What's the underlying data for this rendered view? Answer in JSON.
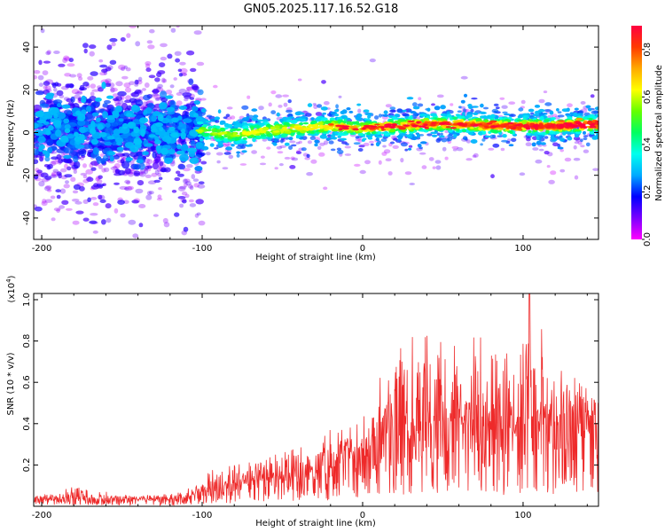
{
  "title": "GN05.2025.117.16.52.G18",
  "chart_data": [
    {
      "type": "heatmap",
      "xlabel": "Height of straight line (km)",
      "ylabel": "Frequency (Hz)",
      "xlim": [
        -205,
        147
      ],
      "ylim": [
        -50,
        50
      ],
      "x_ticks": [
        -200,
        -100,
        0,
        100
      ],
      "y_ticks": [
        -40,
        -20,
        0,
        20,
        40
      ],
      "colorbar": {
        "label": "Normalized spectral amplitude",
        "range": [
          0,
          0.9
        ],
        "ticks": [
          0.0,
          0.2,
          0.4,
          0.6,
          0.8
        ],
        "tick_labels": [
          "0.0",
          "0.2",
          "0.4",
          "0.6",
          "0.8"
        ],
        "colormap": [
          "#ff00ff",
          "#7b00ff",
          "#0000ff",
          "#00aaff",
          "#00ffee",
          "#00ff60",
          "#66ff00",
          "#ffff00",
          "#ffaa00",
          "#ff3a00",
          "#ff0040"
        ]
      },
      "ridge": {
        "x": [
          -200,
          -150,
          -110,
          -100,
          -80,
          -60,
          -40,
          -20,
          0,
          20,
          40,
          60,
          80,
          100,
          120,
          147
        ],
        "freq_hz": [
          2,
          0,
          1,
          1,
          -1,
          1,
          2,
          3,
          2,
          3,
          4,
          4,
          3,
          3,
          3,
          4
        ]
      }
    },
    {
      "type": "line",
      "xlabel": "Height of straight line (km)",
      "ylabel": "SNR (10 * v/v)",
      "y_multiplier": "(x10",
      "y_multiplier_exp": "4",
      "y_multiplier_close": ")",
      "xlim": [
        -205,
        147
      ],
      "ylim": [
        0,
        1.03
      ],
      "x_ticks": [
        -200,
        -100,
        0,
        100
      ],
      "y_ticks": [
        0.2,
        0.4,
        0.6,
        0.8,
        1.0
      ],
      "y_tick_labels": [
        "0.2",
        "0.4",
        "0.6",
        "0.8",
        "1.0"
      ],
      "series": [
        {
          "color": "#ee2a2a",
          "envelope_x": [
            -205,
            -180,
            -150,
            -120,
            -110,
            -100,
            -90,
            -80,
            -70,
            -60,
            -50,
            -40,
            -30,
            -20,
            -10,
            0,
            10,
            20,
            30,
            40,
            50,
            60,
            70,
            80,
            90,
            100,
            110,
            120,
            130,
            140,
            147
          ],
          "envelope_mean": [
            0.03,
            0.03,
            0.03,
            0.03,
            0.04,
            0.06,
            0.08,
            0.1,
            0.11,
            0.13,
            0.13,
            0.14,
            0.15,
            0.18,
            0.22,
            0.26,
            0.3,
            0.32,
            0.35,
            0.36,
            0.36,
            0.38,
            0.38,
            0.37,
            0.36,
            0.37,
            0.38,
            0.38,
            0.38,
            0.36,
            0.37
          ],
          "envelope_max": [
            0.06,
            0.1,
            0.06,
            0.06,
            0.08,
            0.14,
            0.2,
            0.2,
            0.22,
            0.24,
            0.3,
            0.28,
            0.34,
            0.38,
            0.4,
            0.42,
            0.62,
            0.75,
            0.88,
            0.85,
            0.8,
            0.78,
            0.86,
            0.75,
            0.8,
            0.82,
            1.04,
            0.7,
            0.7,
            0.65,
            0.6
          ],
          "peak": {
            "x": 104,
            "y": 1.04
          }
        }
      ]
    }
  ]
}
